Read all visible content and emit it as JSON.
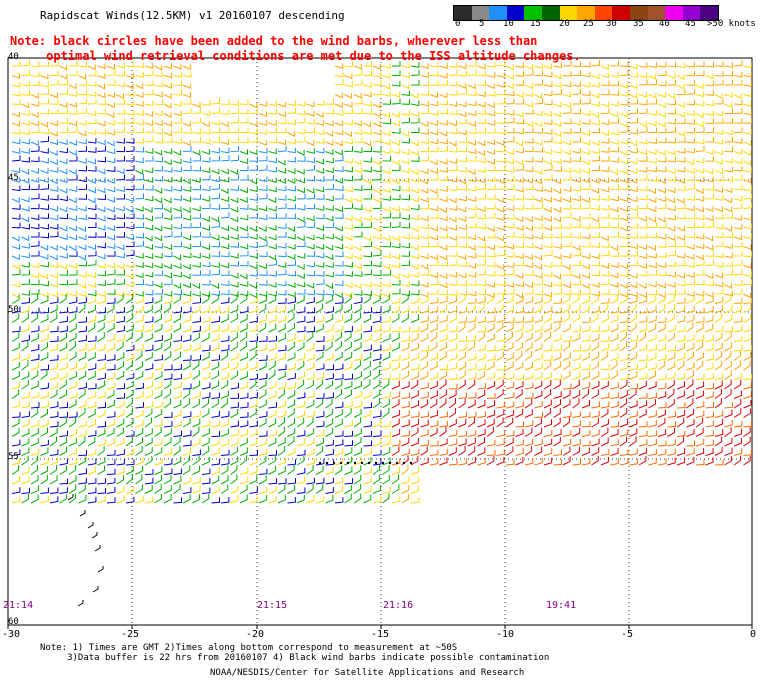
{
  "title": "Rapidscat Winds(12.5KM) v1 20160107 descending",
  "note_line1": "Note: black circles have been added to the wind barbs, wherever less than",
  "note_line2": "     optimal wind retrieval conditions are met due to the ISS altitude changes.",
  "colorbar": {
    "colors": [
      "#2a2a2a",
      "#8a8a8a",
      "#1e90ff",
      "#0000cd",
      "#00c000",
      "#006400",
      "#ffd700",
      "#ffa500",
      "#ff4500",
      "#cc0000",
      "#8b4513",
      "#a0522d",
      "#ee00ee",
      "#9400d3",
      "#4b0082"
    ],
    "labels": [
      "0",
      "5",
      "10",
      "15",
      "20",
      "25",
      "30",
      "35",
      "40",
      "45",
      ">50 knots"
    ]
  },
  "x_ticks": [
    "-30",
    "-25",
    "-20",
    "-15",
    "-10",
    "-5",
    "0"
  ],
  "y_ticks": [
    "40",
    "45",
    "50",
    "55",
    "60"
  ],
  "time_labels": [
    "21:14",
    "21:15",
    "21:16",
    "19:41"
  ],
  "footer_line1": "Note: 1) Times are GMT 2)Times along bottom correspond to measurement at ~50S",
  "footer_line2": "     3)Data buffer is 22 hrs from 20160107 4) Black wind barbs indicate possible contamination",
  "footer_line3": "NOAA/NESDIS/Center for Satellite Applications and Research"
}
